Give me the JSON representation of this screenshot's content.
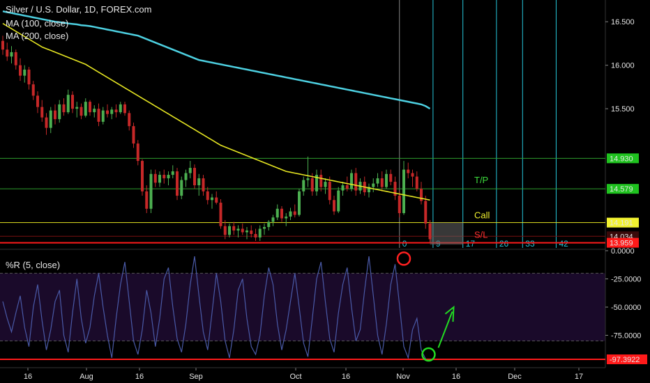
{
  "legend": {
    "title": "Silver / U.S. Dollar, 1D, FOREX.com",
    "ma100": "MA (100, close)",
    "ma200": "MA (200, close)",
    "wr": "%R (5, close)"
  },
  "colors": {
    "background": "#000000",
    "up": "#4caf50",
    "down": "#c62828",
    "ma100": "#4dd0e1",
    "ma200": "#e6e622",
    "level_green": "#2e9e2e",
    "level_red": "#ff1a1a",
    "fib": "#26c6da",
    "wr_line": "#4a5aa8",
    "wr_band": "#1a0a2a"
  },
  "chart_data": [
    {
      "type": "candlestick",
      "title": "Silver / U.S. Dollar, 1D, FOREX.com",
      "ylim": [
        13.9,
        16.75
      ],
      "y_ticks": [
        "16.500",
        "16.000",
        "15.500",
        "14.930",
        "14.579",
        "14.191",
        "14.034",
        "13.959"
      ],
      "x_ticks": [
        "16",
        "Aug",
        "16",
        "Sep",
        "Oct",
        "16",
        "Nov",
        "16",
        "Dec",
        "17"
      ],
      "ohlc": [
        [
          16.28,
          16.34,
          16.12,
          16.18
        ],
        [
          16.18,
          16.26,
          16.05,
          16.1
        ],
        [
          16.1,
          16.22,
          16.02,
          16.15
        ],
        [
          16.15,
          16.18,
          15.95,
          16.0
        ],
        [
          16.0,
          16.08,
          15.82,
          15.88
        ],
        [
          15.88,
          16.0,
          15.8,
          15.95
        ],
        [
          15.95,
          15.98,
          15.72,
          15.78
        ],
        [
          15.78,
          15.82,
          15.6,
          15.65
        ],
        [
          15.65,
          15.7,
          15.45,
          15.52
        ],
        [
          15.52,
          15.6,
          15.35,
          15.4
        ],
        [
          15.4,
          15.45,
          15.2,
          15.28
        ],
        [
          15.28,
          15.52,
          15.22,
          15.48
        ],
        [
          15.48,
          15.55,
          15.32,
          15.38
        ],
        [
          15.38,
          15.6,
          15.34,
          15.55
        ],
        [
          15.55,
          15.62,
          15.42,
          15.46
        ],
        [
          15.46,
          15.72,
          15.44,
          15.66
        ],
        [
          15.66,
          15.7,
          15.45,
          15.5
        ],
        [
          15.5,
          15.58,
          15.4,
          15.52
        ],
        [
          15.52,
          15.56,
          15.38,
          15.42
        ],
        [
          15.42,
          15.62,
          15.4,
          15.58
        ],
        [
          15.58,
          15.6,
          15.42,
          15.46
        ],
        [
          15.46,
          15.54,
          15.4,
          15.5
        ],
        [
          15.5,
          15.56,
          15.3,
          15.35
        ],
        [
          15.35,
          15.52,
          15.32,
          15.48
        ],
        [
          15.48,
          15.55,
          15.4,
          15.44
        ],
        [
          15.44,
          15.52,
          15.38,
          15.49
        ],
        [
          15.49,
          15.55,
          15.4,
          15.46
        ],
        [
          15.46,
          15.58,
          15.44,
          15.55
        ],
        [
          15.55,
          15.58,
          15.42,
          15.45
        ],
        [
          15.45,
          15.48,
          15.25,
          15.3
        ],
        [
          15.3,
          15.34,
          15.05,
          15.1
        ],
        [
          15.1,
          15.14,
          14.85,
          14.9
        ],
        [
          14.9,
          14.92,
          14.5,
          14.55
        ],
        [
          14.55,
          14.62,
          14.3,
          14.35
        ],
        [
          14.35,
          14.8,
          14.3,
          14.75
        ],
        [
          14.75,
          14.8,
          14.6,
          14.65
        ],
        [
          14.65,
          14.78,
          14.6,
          14.74
        ],
        [
          14.74,
          14.8,
          14.64,
          14.7
        ],
        [
          14.7,
          14.78,
          14.62,
          14.74
        ],
        [
          14.74,
          14.85,
          14.7,
          14.78
        ],
        [
          14.78,
          14.82,
          14.45,
          14.5
        ],
        [
          14.5,
          14.72,
          14.46,
          14.68
        ],
        [
          14.68,
          14.8,
          14.6,
          14.76
        ],
        [
          14.76,
          14.9,
          14.7,
          14.82
        ],
        [
          14.82,
          14.86,
          14.58,
          14.62
        ],
        [
          14.62,
          14.75,
          14.5,
          14.7
        ],
        [
          14.7,
          14.74,
          14.5,
          14.55
        ],
        [
          14.55,
          14.6,
          14.4,
          14.45
        ],
        [
          14.45,
          14.52,
          14.35,
          14.48
        ],
        [
          14.48,
          14.55,
          14.4,
          14.42
        ],
        [
          14.42,
          14.46,
          14.12,
          14.15
        ],
        [
          14.15,
          14.22,
          14.0,
          14.05
        ],
        [
          14.05,
          14.18,
          14.02,
          14.15
        ],
        [
          14.15,
          14.2,
          14.05,
          14.1
        ],
        [
          14.1,
          14.16,
          14.02,
          14.12
        ],
        [
          14.12,
          14.18,
          14.05,
          14.08
        ],
        [
          14.08,
          14.14,
          14.0,
          14.1
        ],
        [
          14.1,
          14.16,
          14.02,
          14.06
        ],
        [
          14.06,
          14.12,
          13.98,
          14.02
        ],
        [
          14.02,
          14.16,
          13.98,
          14.12
        ],
        [
          14.12,
          14.18,
          14.05,
          14.14
        ],
        [
          14.14,
          14.22,
          14.1,
          14.2
        ],
        [
          14.2,
          14.28,
          14.15,
          14.25
        ],
        [
          14.25,
          14.4,
          14.22,
          14.35
        ],
        [
          14.35,
          14.38,
          14.2,
          14.24
        ],
        [
          14.24,
          14.3,
          14.15,
          14.26
        ],
        [
          14.26,
          14.36,
          14.22,
          14.32
        ],
        [
          14.32,
          14.4,
          14.25,
          14.28
        ],
        [
          14.28,
          14.58,
          14.26,
          14.55
        ],
        [
          14.55,
          14.72,
          14.5,
          14.68
        ],
        [
          14.68,
          14.95,
          14.6,
          14.7
        ],
        [
          14.7,
          14.76,
          14.5,
          14.55
        ],
        [
          14.55,
          14.8,
          14.5,
          14.74
        ],
        [
          14.74,
          14.8,
          14.55,
          14.6
        ],
        [
          14.6,
          14.7,
          14.52,
          14.66
        ],
        [
          14.66,
          14.72,
          14.4,
          14.45
        ],
        [
          14.45,
          14.5,
          14.28,
          14.32
        ],
        [
          14.32,
          14.6,
          14.3,
          14.56
        ],
        [
          14.56,
          14.66,
          14.5,
          14.62
        ],
        [
          14.62,
          14.72,
          14.55,
          14.58
        ],
        [
          14.58,
          14.8,
          14.55,
          14.76
        ],
        [
          14.76,
          14.82,
          14.5,
          14.56
        ],
        [
          14.56,
          14.7,
          14.52,
          14.66
        ],
        [
          14.66,
          14.72,
          14.5,
          14.54
        ],
        [
          14.54,
          14.64,
          14.48,
          14.6
        ],
        [
          14.6,
          14.7,
          14.54,
          14.64
        ],
        [
          14.64,
          14.76,
          14.6,
          14.7
        ],
        [
          14.7,
          14.78,
          14.55,
          14.6
        ],
        [
          14.6,
          14.8,
          14.58,
          14.75
        ],
        [
          14.75,
          14.8,
          14.62,
          14.66
        ],
        [
          14.66,
          14.72,
          14.45,
          14.5
        ],
        [
          14.5,
          14.55,
          14.25,
          14.3
        ],
        [
          14.3,
          14.9,
          14.28,
          14.8
        ],
        [
          14.8,
          14.88,
          14.7,
          14.76
        ],
        [
          14.76,
          14.8,
          14.6,
          14.72
        ],
        [
          14.72,
          14.78,
          14.55,
          14.58
        ],
        [
          14.58,
          14.66,
          14.4,
          14.44
        ],
        [
          14.44,
          14.5,
          14.12,
          14.18
        ],
        [
          14.18,
          14.22,
          13.96,
          14.0
        ]
      ],
      "series": [
        {
          "name": "MA (100, close)",
          "values": [
            16.62,
            16.61,
            16.6,
            16.59,
            16.58,
            16.57,
            16.56,
            16.55,
            16.54,
            16.53,
            16.52,
            16.51,
            16.5,
            16.495,
            16.49,
            16.48,
            16.475,
            16.47,
            16.46,
            16.455,
            16.45,
            16.44,
            16.43,
            16.42,
            16.41,
            16.4,
            16.39,
            16.38,
            16.37,
            16.36,
            16.35,
            16.34,
            16.32,
            16.3,
            16.28,
            16.26,
            16.24,
            16.22,
            16.2,
            16.18,
            16.16,
            16.14,
            16.12,
            16.1,
            16.08,
            16.06,
            16.05,
            16.04,
            16.03,
            16.02,
            16.01,
            16.0,
            15.99,
            15.98,
            15.97,
            15.96,
            15.95,
            15.94,
            15.93,
            15.92,
            15.91,
            15.9,
            15.89,
            15.88,
            15.87,
            15.86,
            15.85,
            15.84,
            15.83,
            15.82,
            15.81,
            15.8,
            15.79,
            15.78,
            15.77,
            15.76,
            15.75,
            15.74,
            15.73,
            15.72,
            15.71,
            15.7,
            15.69,
            15.68,
            15.67,
            15.66,
            15.65,
            15.64,
            15.63,
            15.62,
            15.61,
            15.6,
            15.59,
            15.58,
            15.57,
            15.56,
            15.55,
            15.53,
            15.5
          ]
        },
        {
          "name": "MA (200, close)",
          "values": [
            16.48,
            16.45,
            16.42,
            16.39,
            16.36,
            16.33,
            16.3,
            16.27,
            16.24,
            16.21,
            16.19,
            16.17,
            16.15,
            16.13,
            16.11,
            16.09,
            16.07,
            16.05,
            16.03,
            16.01,
            15.98,
            15.95,
            15.92,
            15.89,
            15.86,
            15.83,
            15.8,
            15.77,
            15.74,
            15.71,
            15.68,
            15.65,
            15.62,
            15.59,
            15.56,
            15.53,
            15.5,
            15.47,
            15.44,
            15.41,
            15.38,
            15.35,
            15.32,
            15.29,
            15.26,
            15.23,
            15.2,
            15.17,
            15.14,
            15.11,
            15.08,
            15.06,
            15.04,
            15.02,
            15.0,
            14.98,
            14.96,
            14.94,
            14.92,
            14.9,
            14.88,
            14.86,
            14.84,
            14.82,
            14.8,
            14.78,
            14.77,
            14.76,
            14.75,
            14.74,
            14.73,
            14.72,
            14.71,
            14.7,
            14.69,
            14.68,
            14.67,
            14.66,
            14.65,
            14.64,
            14.63,
            14.62,
            14.61,
            14.6,
            14.59,
            14.58,
            14.57,
            14.56,
            14.55,
            14.54,
            14.53,
            14.52,
            14.51,
            14.5,
            14.49,
            14.48,
            14.47,
            14.46,
            14.45
          ]
        }
      ],
      "levels": [
        {
          "value": 14.93,
          "label": "14.930",
          "color": "#2e9e2e"
        },
        {
          "value": 14.579,
          "label": "14.579",
          "color": "#2e9e2e"
        },
        {
          "value": 14.191,
          "label": "14.191",
          "color": "#e6e622"
        },
        {
          "value": 14.034,
          "label": "14.034",
          "color": "#7a1010"
        },
        {
          "value": 13.959,
          "label": "13.959",
          "color": "#ff1a1a"
        }
      ],
      "fib_time_zones": [
        "0",
        "9",
        "17",
        "26",
        "33",
        "42"
      ],
      "annotations": {
        "tp": "T/P",
        "call": "Call",
        "sl": "S/L"
      }
    },
    {
      "type": "line",
      "title": "%R (5, close)",
      "ylim": [
        -100,
        0
      ],
      "y_ticks": [
        "0.0000",
        "-25.0000",
        "-50.0000",
        "-75.0000"
      ],
      "current": "-97.3922",
      "bands": [
        -20,
        -80
      ],
      "values": [
        -45,
        -60,
        -72,
        -55,
        -40,
        -68,
        -85,
        -50,
        -30,
        -62,
        -88,
        -70,
        -45,
        -35,
        -75,
        -90,
        -55,
        -25,
        -60,
        -82,
        -68,
        -40,
        -20,
        -50,
        -75,
        -95,
        -60,
        -30,
        -10,
        -45,
        -80,
        -92,
        -70,
        -35,
        -55,
        -85,
        -60,
        -25,
        -15,
        -50,
        -78,
        -90,
        -65,
        -30,
        -5,
        -40,
        -72,
        -88,
        -55,
        -20,
        -45,
        -80,
        -95,
        -70,
        -35,
        -25,
        -60,
        -85,
        -92,
        -75,
        -40,
        -15,
        -30,
        -65,
        -88,
        -70,
        -45,
        -20,
        -50,
        -82,
        -94,
        -60,
        -25,
        -10,
        -45,
        -78,
        -90,
        -55,
        -30,
        -15,
        -50,
        -80,
        -70,
        -35,
        -5,
        -40,
        -75,
        -92,
        -65,
        -30,
        -12,
        -48,
        -85,
        -95,
        -70,
        -60,
        -88,
        -96,
        -97.39
      ]
    }
  ]
}
